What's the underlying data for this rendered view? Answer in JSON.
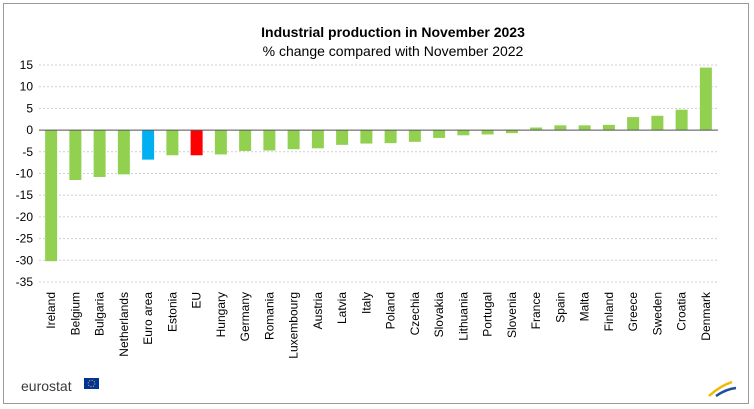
{
  "chart_data": {
    "type": "bar",
    "title": "Industrial production  in November 2023",
    "subtitle": "% change compared with November 2022",
    "categories": [
      "Ireland",
      "Belgium",
      "Bulgaria",
      "Netherlands",
      "Euro area",
      "Estonia",
      "EU",
      "Hungary",
      "Germany",
      "Romania",
      "Luxembourg",
      "Austria",
      "Latvia",
      "Italy",
      "Poland",
      "Czechia",
      "Slovakia",
      "Lithuania",
      "Portugal",
      "Slovenia",
      "France",
      "Spain",
      "Malta",
      "Finland",
      "Greece",
      "Sweden",
      "Croatia",
      "Denmark"
    ],
    "values": [
      -30.2,
      -11.5,
      -10.8,
      -10.2,
      -6.8,
      -5.8,
      -5.8,
      -5.6,
      -4.8,
      -4.7,
      -4.4,
      -4.2,
      -3.4,
      -3.1,
      -3.0,
      -2.7,
      -1.8,
      -1.2,
      -1.0,
      -0.7,
      0.6,
      1.1,
      1.1,
      1.2,
      3.0,
      3.3,
      4.7,
      14.4
    ],
    "bar_colors": [
      "#92d050",
      "#92d050",
      "#92d050",
      "#92d050",
      "#00b0f0",
      "#92d050",
      "#ff0000",
      "#92d050",
      "#92d050",
      "#92d050",
      "#92d050",
      "#92d050",
      "#92d050",
      "#92d050",
      "#92d050",
      "#92d050",
      "#92d050",
      "#92d050",
      "#92d050",
      "#92d050",
      "#92d050",
      "#92d050",
      "#92d050",
      "#92d050",
      "#92d050",
      "#92d050",
      "#92d050",
      "#92d050"
    ],
    "y_ticks": [
      15,
      10,
      5,
      0,
      -5,
      -10,
      -15,
      -20,
      -25,
      -30,
      -35
    ],
    "ylim": [
      -35,
      15
    ],
    "grid": true,
    "legend": "none"
  },
  "branding": {
    "logo_text": "eurostat",
    "flag_icon": "eu-flag-icon",
    "corner_icon": "eurostat-swoosh-icon"
  }
}
